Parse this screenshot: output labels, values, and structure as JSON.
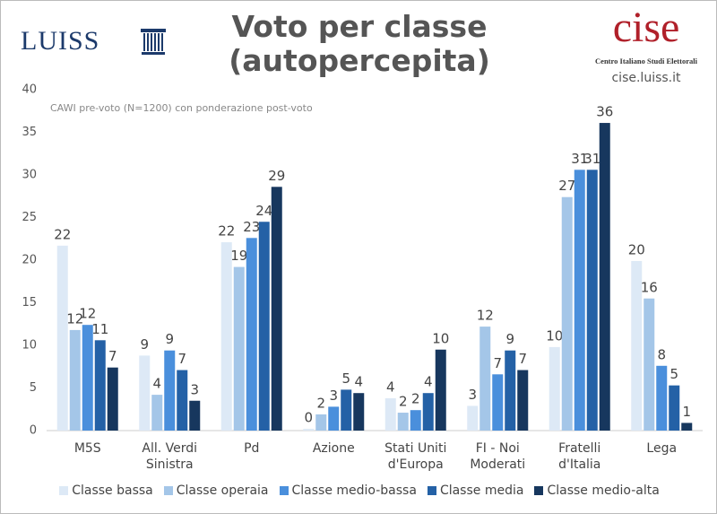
{
  "logos": {
    "left": "LUISS",
    "right": "cise",
    "right_caption": "Centro Italiano Studi Elettorali",
    "url": "cise.luiss.it"
  },
  "chart_data": {
    "type": "bar",
    "title": "Voto per classe (autopercepita)",
    "subtitle": "CAWI pre-voto (N=1200) con ponderazione post-voto",
    "categories": [
      "M5S",
      "All. Verdi Sinistra",
      "Pd",
      "Azione",
      "Stati Uniti d'Europa",
      "FI - Noi Moderati",
      "Fratelli d'Italia",
      "Lega"
    ],
    "series": [
      {
        "name": "Classe bassa",
        "color": "#dde9f6",
        "values": [
          21.7,
          8.8,
          22.1,
          0.2,
          3.8,
          2.9,
          9.8,
          19.9
        ],
        "value_labels": [
          "22",
          "9",
          "22",
          "0",
          "4",
          "3",
          "10",
          "20"
        ]
      },
      {
        "name": "Classe operaia",
        "color": "#a4c6e8",
        "values": [
          11.8,
          4.2,
          19.2,
          1.9,
          2.1,
          12.2,
          27.4,
          15.5
        ],
        "value_labels": [
          "12",
          "4",
          "19",
          "2",
          "2",
          "12",
          "27",
          "16"
        ]
      },
      {
        "name": "Classe medio-bassa",
        "color": "#4a8fdc",
        "values": [
          12.4,
          9.4,
          22.6,
          2.8,
          2.4,
          6.6,
          30.6,
          7.6
        ],
        "value_labels": [
          "12",
          "9",
          "23",
          "3",
          "2",
          "7",
          "31",
          "8"
        ]
      },
      {
        "name": "Classe media",
        "color": "#2461a6",
        "values": [
          10.6,
          7.1,
          24.5,
          4.8,
          4.4,
          9.4,
          30.6,
          5.3
        ],
        "value_labels": [
          "11",
          "7",
          "24",
          "5",
          "4",
          "9",
          "31",
          "5"
        ]
      },
      {
        "name": "Classe medio-alta",
        "color": "#17375e",
        "values": [
          7.4,
          3.5,
          28.6,
          4.4,
          9.5,
          7.1,
          36.1,
          0.9
        ],
        "value_labels": [
          "7",
          "3",
          "29",
          "4",
          "10",
          "7",
          "36",
          "1"
        ]
      }
    ],
    "ylim": [
      0,
      40
    ],
    "yticks": [
      0,
      5,
      10,
      15,
      20,
      25,
      30,
      35,
      40
    ],
    "grid": false
  }
}
